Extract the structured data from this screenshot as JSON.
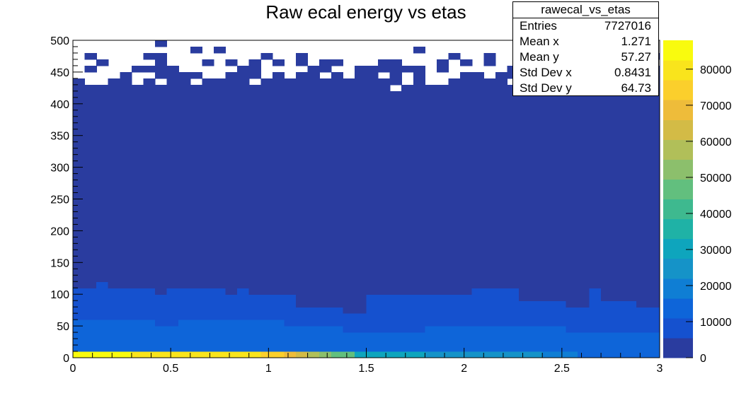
{
  "chart_data": {
    "type": "heatmap",
    "title": "Raw ecal energy vs etas",
    "xlabel": "",
    "ylabel": "",
    "xlim": [
      0,
      3
    ],
    "ylim": [
      0,
      500
    ],
    "x_ticks": [
      "0",
      "0.5",
      "1",
      "1.5",
      "2",
      "2.5",
      "3"
    ],
    "y_ticks": [
      "0",
      "50",
      "100",
      "150",
      "200",
      "250",
      "300",
      "350",
      "400",
      "450",
      "500"
    ],
    "z_ticks": [
      "0",
      "10000",
      "20000",
      "30000",
      "40000",
      "50000",
      "60000",
      "70000",
      "80000"
    ],
    "zlim": [
      0,
      88000
    ],
    "x_bins": 50,
    "y_bins": 50,
    "colormap": [
      "#2a3c9f",
      "#1551cf",
      "#0e65d9",
      "#0f7ed4",
      "#1593c8",
      "#0ea5bd",
      "#1fb2a6",
      "#3eb98f",
      "#62bf7e",
      "#8cbf6c",
      "#b1bf59",
      "#d3bb46",
      "#eebc3a",
      "#fbcf2c",
      "#f9e41c",
      "#f9fb0e"
    ],
    "cells": {
      "bottom_row_y": "0-10",
      "bottom_row_values": [
        84000,
        84000,
        84000,
        84000,
        84000,
        82000,
        82000,
        82000,
        82000,
        82000,
        80000,
        80000,
        80000,
        80000,
        80000,
        78000,
        76000,
        72000,
        66000,
        62000,
        56000,
        50000,
        48000,
        45000,
        30000,
        30000,
        28000,
        28000,
        28000,
        28000,
        26000,
        26000,
        26000,
        26000,
        25000,
        25000,
        24000,
        24000,
        22000,
        22000,
        20000,
        20000,
        18000,
        14000,
        12000,
        12000,
        12000,
        12000,
        12000,
        11000
      ],
      "high_density_upper_edge_y": [
        25,
        25,
        25,
        25,
        25,
        25,
        25,
        25,
        25,
        25,
        25,
        25,
        25,
        25,
        25,
        25,
        25,
        25,
        20,
        20,
        20,
        20,
        20,
        15,
        15,
        25,
        25,
        25,
        25,
        25,
        25,
        25,
        25,
        25,
        25,
        25,
        25,
        25,
        25,
        25,
        25,
        25,
        25,
        25,
        20,
        20,
        20,
        20,
        20,
        15
      ],
      "mid_density_upper_edge_y": [
        60,
        60,
        60,
        60,
        60,
        60,
        60,
        55,
        55,
        60,
        60,
        60,
        60,
        60,
        60,
        60,
        60,
        60,
        55,
        55,
        55,
        55,
        55,
        45,
        45,
        40,
        40,
        40,
        40,
        45,
        50,
        50,
        50,
        50,
        50,
        50,
        50,
        50,
        50,
        50,
        50,
        50,
        45,
        45,
        45,
        45,
        45,
        45,
        40,
        40
      ],
      "low_density_upper_edge_y": [
        110,
        110,
        120,
        110,
        110,
        110,
        110,
        100,
        110,
        110,
        110,
        110,
        110,
        100,
        110,
        100,
        100,
        100,
        100,
        80,
        80,
        80,
        80,
        70,
        70,
        100,
        100,
        100,
        100,
        100,
        100,
        100,
        100,
        100,
        110,
        110,
        110,
        110,
        90,
        90,
        90,
        90,
        80,
        80,
        110,
        90,
        90,
        90,
        80,
        80
      ],
      "occupied_upper_edge_y": 420,
      "sparse_top_region_y": [
        420,
        500
      ]
    }
  },
  "stats": {
    "name": "rawecal_vs_etas",
    "entries_label": "Entries",
    "entries_value": "7727016",
    "mean_x_label": "Mean x",
    "mean_x_value": "1.271",
    "mean_y_label": "Mean y",
    "mean_y_value": "57.27",
    "std_x_label": "Std Dev x",
    "std_x_value": "0.8431",
    "std_y_label": "Std Dev y",
    "std_y_value": "64.73"
  }
}
